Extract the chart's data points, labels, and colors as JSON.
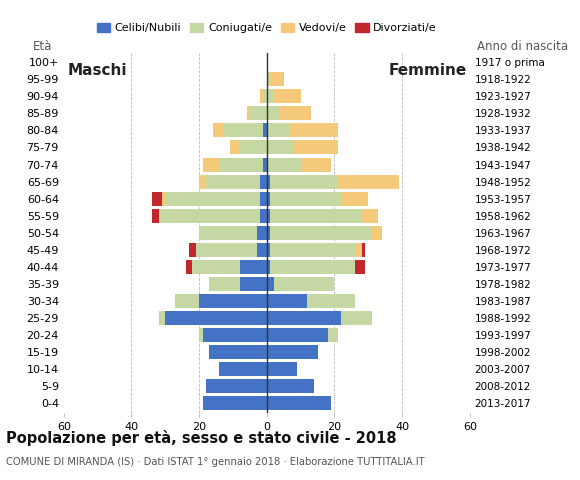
{
  "age_groups": [
    "0-4",
    "5-9",
    "10-14",
    "15-19",
    "20-24",
    "25-29",
    "30-34",
    "35-39",
    "40-44",
    "45-49",
    "50-54",
    "55-59",
    "60-64",
    "65-69",
    "70-74",
    "75-79",
    "80-84",
    "85-89",
    "90-94",
    "95-99",
    "100+"
  ],
  "birth_years": [
    "2013-2017",
    "2008-2012",
    "2003-2007",
    "1998-2002",
    "1993-1997",
    "1988-1992",
    "1983-1987",
    "1978-1982",
    "1973-1977",
    "1968-1972",
    "1963-1967",
    "1958-1962",
    "1953-1957",
    "1948-1952",
    "1943-1947",
    "1938-1942",
    "1933-1937",
    "1928-1932",
    "1923-1927",
    "1918-1922",
    "1917 o prima"
  ],
  "male": {
    "celibi": [
      19,
      18,
      14,
      17,
      19,
      30,
      20,
      8,
      8,
      3,
      3,
      2,
      2,
      2,
      1,
      0,
      1,
      0,
      0,
      0,
      0
    ],
    "coniugati": [
      0,
      0,
      0,
      0,
      1,
      2,
      7,
      9,
      14,
      18,
      17,
      30,
      28,
      16,
      13,
      8,
      12,
      5,
      1,
      0,
      0
    ],
    "vedovi": [
      0,
      0,
      0,
      0,
      0,
      0,
      0,
      0,
      0,
      0,
      0,
      0,
      1,
      2,
      5,
      3,
      3,
      1,
      1,
      0,
      0
    ],
    "divorziati": [
      0,
      0,
      0,
      0,
      0,
      0,
      0,
      0,
      2,
      2,
      0,
      2,
      3,
      0,
      0,
      0,
      0,
      0,
      0,
      0,
      0
    ]
  },
  "female": {
    "nubili": [
      19,
      14,
      9,
      15,
      18,
      22,
      12,
      2,
      1,
      1,
      1,
      1,
      1,
      1,
      0,
      0,
      0,
      0,
      0,
      0,
      0
    ],
    "coniugate": [
      0,
      0,
      0,
      0,
      3,
      9,
      14,
      18,
      25,
      25,
      30,
      27,
      21,
      20,
      10,
      8,
      7,
      4,
      2,
      1,
      0
    ],
    "vedove": [
      0,
      0,
      0,
      0,
      0,
      0,
      0,
      0,
      0,
      2,
      3,
      5,
      8,
      18,
      9,
      13,
      14,
      9,
      8,
      4,
      0
    ],
    "divorziate": [
      0,
      0,
      0,
      0,
      0,
      0,
      0,
      0,
      3,
      1,
      0,
      0,
      0,
      0,
      0,
      0,
      0,
      0,
      0,
      0,
      0
    ]
  },
  "colors": {
    "celibi_nubili": "#4472c4",
    "coniugati": "#c5d8a4",
    "vedovi": "#f5c97a",
    "divorziati": "#c0282d"
  },
  "title": "Popolazione per età, sesso e stato civile - 2018",
  "subtitle": "COMUNE DI MIRANDA (IS) · Dati ISTAT 1° gennaio 2018 · Elaborazione TUTTITALIA.IT",
  "label_left": "Maschi",
  "label_right": "Femmine",
  "eta_label": "Età",
  "anno_label": "Anno di nascita",
  "xlim": 60,
  "background_color": "#ffffff",
  "grid_color": "#bbbbbb",
  "xticks": [
    60,
    40,
    20,
    0,
    20,
    40,
    60
  ]
}
